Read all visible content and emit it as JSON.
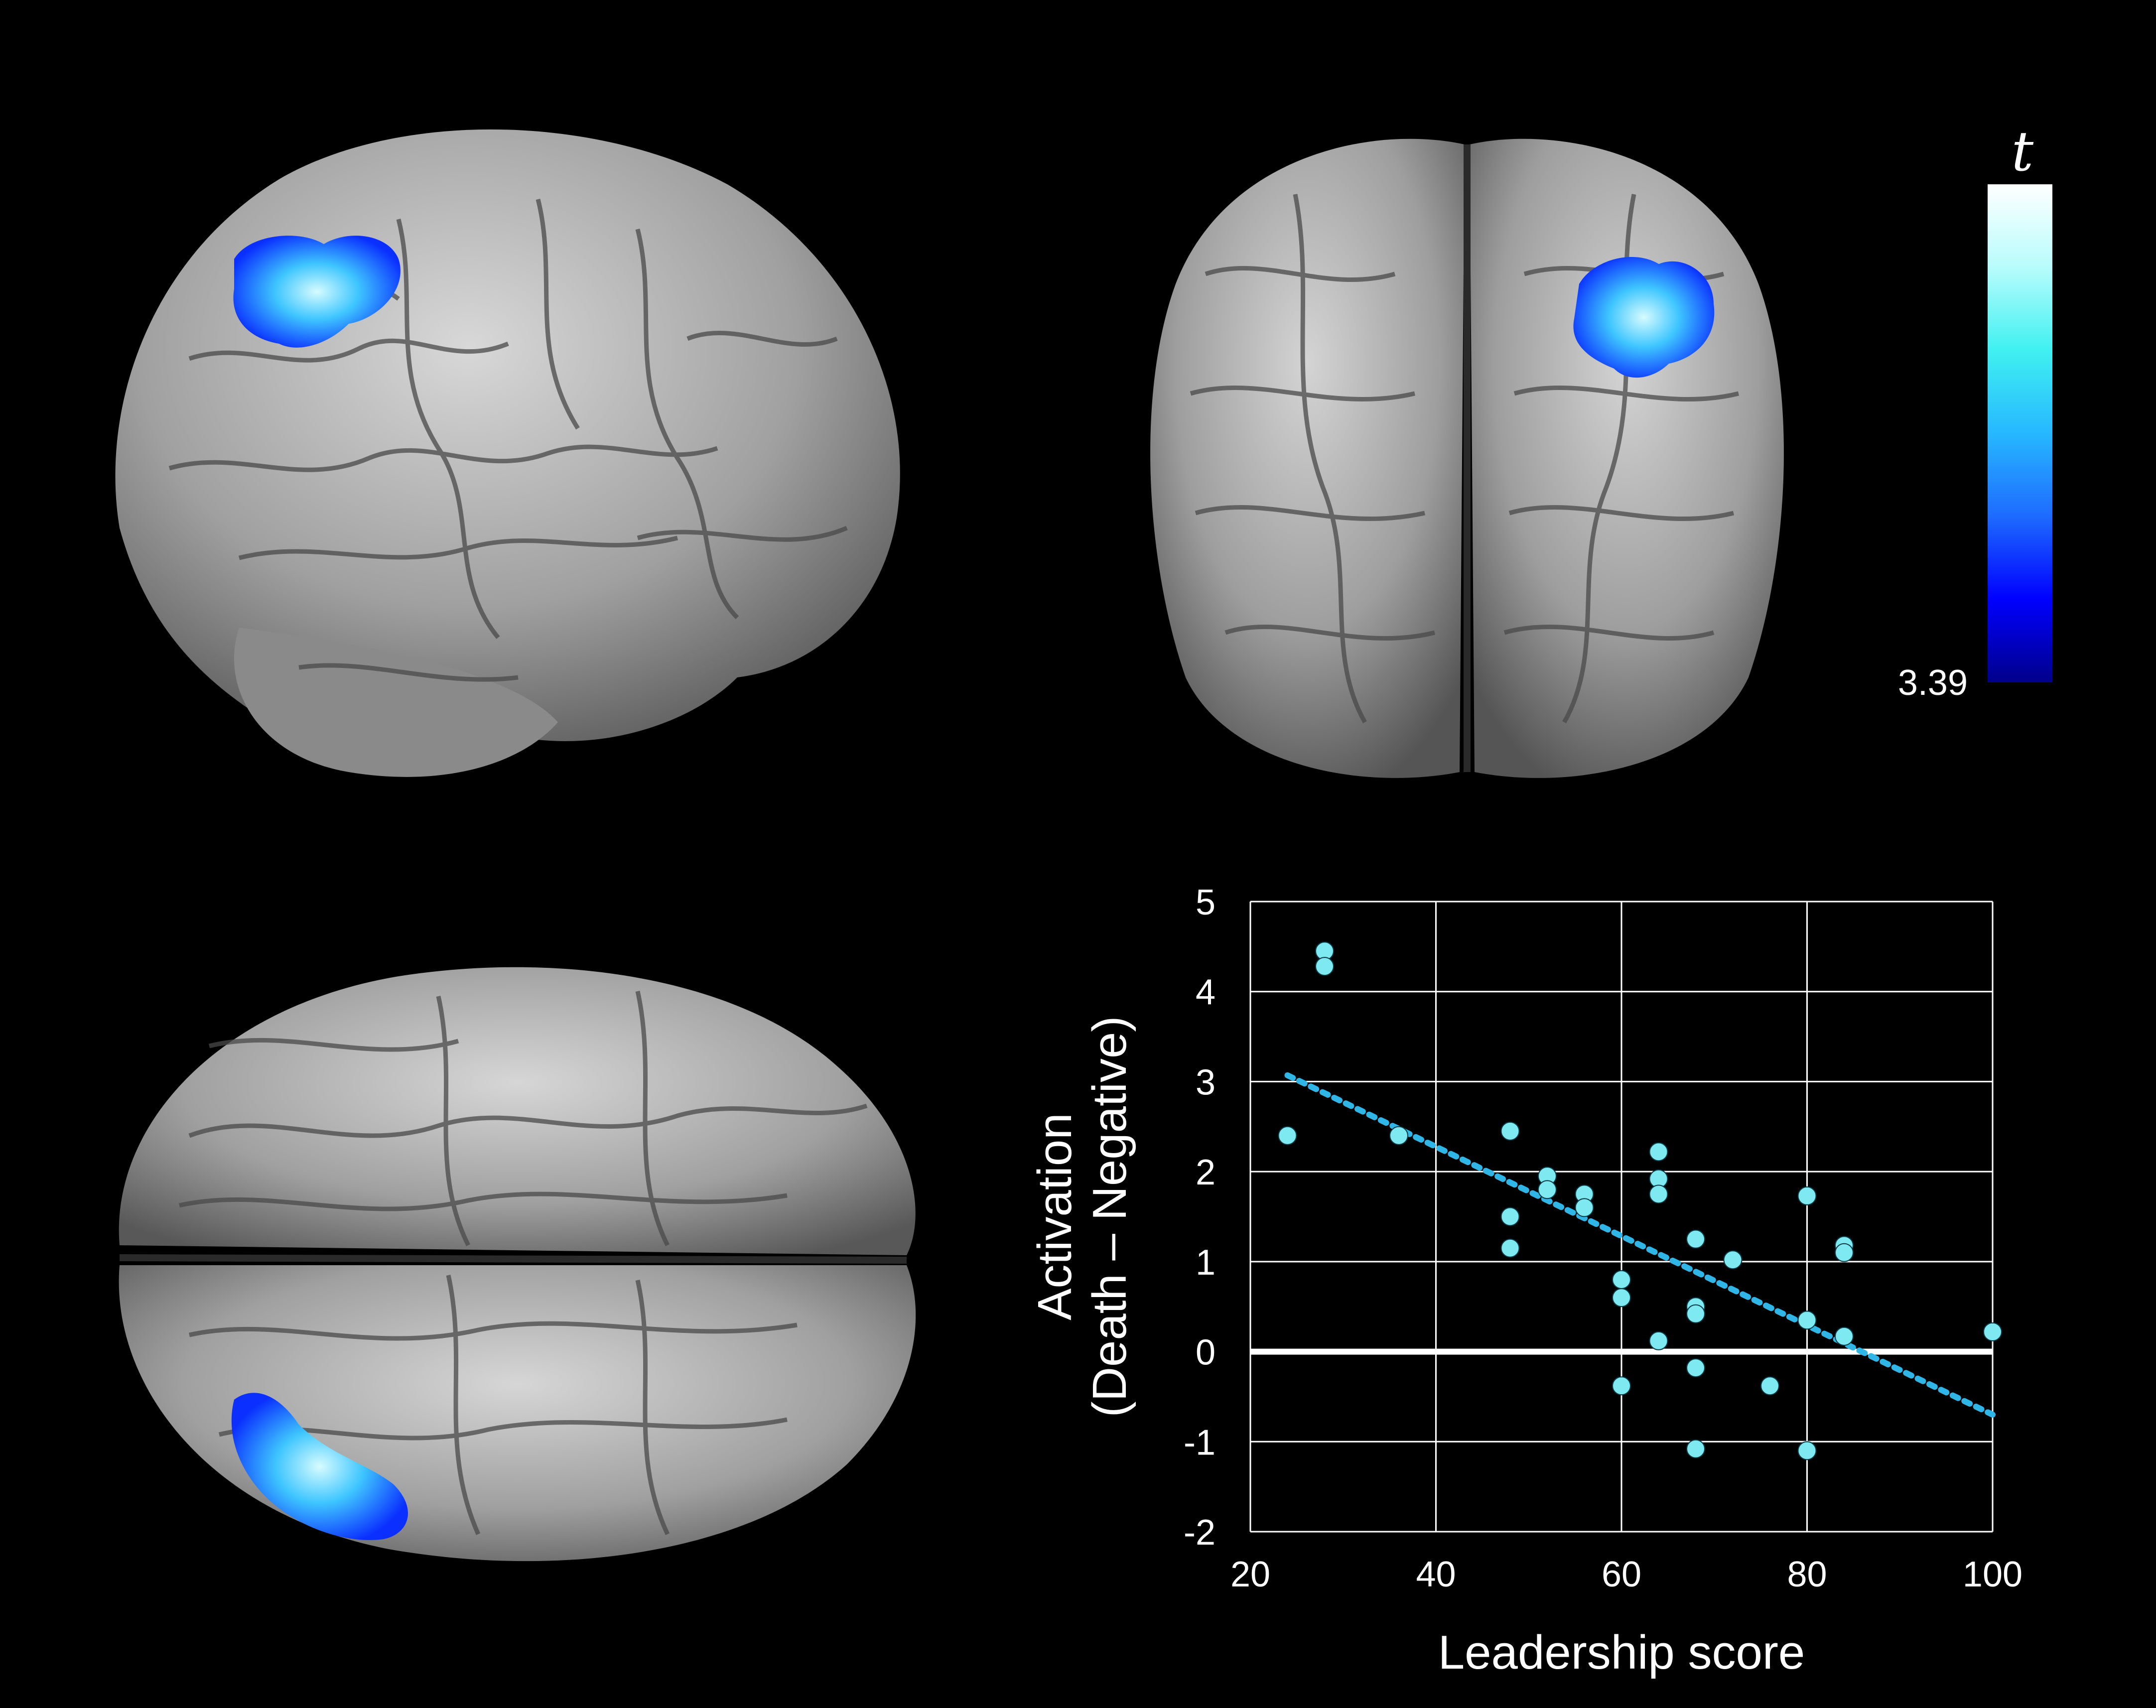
{
  "colorbar": {
    "label": "t",
    "min_label": "3.39",
    "colors": [
      "#00008a",
      "#0000ff",
      "#1e6bff",
      "#26b8ff",
      "#40f0f0",
      "#b8fcfc",
      "#ffffff"
    ]
  },
  "brain_views": [
    {
      "view": "lateral",
      "activation": "blue cluster"
    },
    {
      "view": "posterior",
      "activation": "blue cluster"
    },
    {
      "view": "superior",
      "activation": "blue cluster"
    }
  ],
  "colors": {
    "background": "#000000",
    "brain": "#9a9a9a",
    "points": "#7fe9f2",
    "trend": "#2fb6e6",
    "grid": "#ffffff",
    "zero_line": "#ffffff"
  },
  "chart_data": {
    "type": "scatter",
    "title": "",
    "xlabel": "Leadership score",
    "ylabel_line1": "Activation",
    "ylabel_line2": "(Death – Negative)",
    "xlim": [
      20,
      100
    ],
    "ylim": [
      -2,
      5
    ],
    "xticks": [
      "20",
      "40",
      "60",
      "80",
      "100"
    ],
    "yticks": [
      "-2",
      "-1",
      "0",
      "1",
      "2",
      "3",
      "4",
      "5"
    ],
    "grid": true,
    "points": [
      {
        "x": 24,
        "y": 2.4
      },
      {
        "x": 28,
        "y": 4.45
      },
      {
        "x": 28,
        "y": 4.28
      },
      {
        "x": 36,
        "y": 2.4
      },
      {
        "x": 48,
        "y": 2.45
      },
      {
        "x": 48,
        "y": 1.5
      },
      {
        "x": 48,
        "y": 1.15
      },
      {
        "x": 52,
        "y": 1.95
      },
      {
        "x": 52,
        "y": 1.8
      },
      {
        "x": 56,
        "y": 1.75
      },
      {
        "x": 56,
        "y": 1.6
      },
      {
        "x": 60,
        "y": 0.8
      },
      {
        "x": 60,
        "y": 0.6
      },
      {
        "x": 60,
        "y": -0.38
      },
      {
        "x": 64,
        "y": 2.22
      },
      {
        "x": 64,
        "y": 1.92
      },
      {
        "x": 64,
        "y": 1.75
      },
      {
        "x": 64,
        "y": 0.12
      },
      {
        "x": 68,
        "y": 1.25
      },
      {
        "x": 68,
        "y": 0.5
      },
      {
        "x": 68,
        "y": 0.42
      },
      {
        "x": 68,
        "y": -0.18
      },
      {
        "x": 68,
        "y": -1.08
      },
      {
        "x": 72,
        "y": 1.02
      },
      {
        "x": 76,
        "y": -0.38
      },
      {
        "x": 80,
        "y": 1.73
      },
      {
        "x": 80,
        "y": 0.35
      },
      {
        "x": 80,
        "y": -1.1
      },
      {
        "x": 84,
        "y": 1.18
      },
      {
        "x": 84,
        "y": 1.1
      },
      {
        "x": 84,
        "y": 0.17
      },
      {
        "x": 100,
        "y": 0.22
      }
    ],
    "trendline": {
      "style": "dotted",
      "from": {
        "x": 24,
        "y": 3.07
      },
      "to": {
        "x": 100,
        "y": -0.7
      }
    },
    "reference_line": {
      "y": 0
    }
  }
}
